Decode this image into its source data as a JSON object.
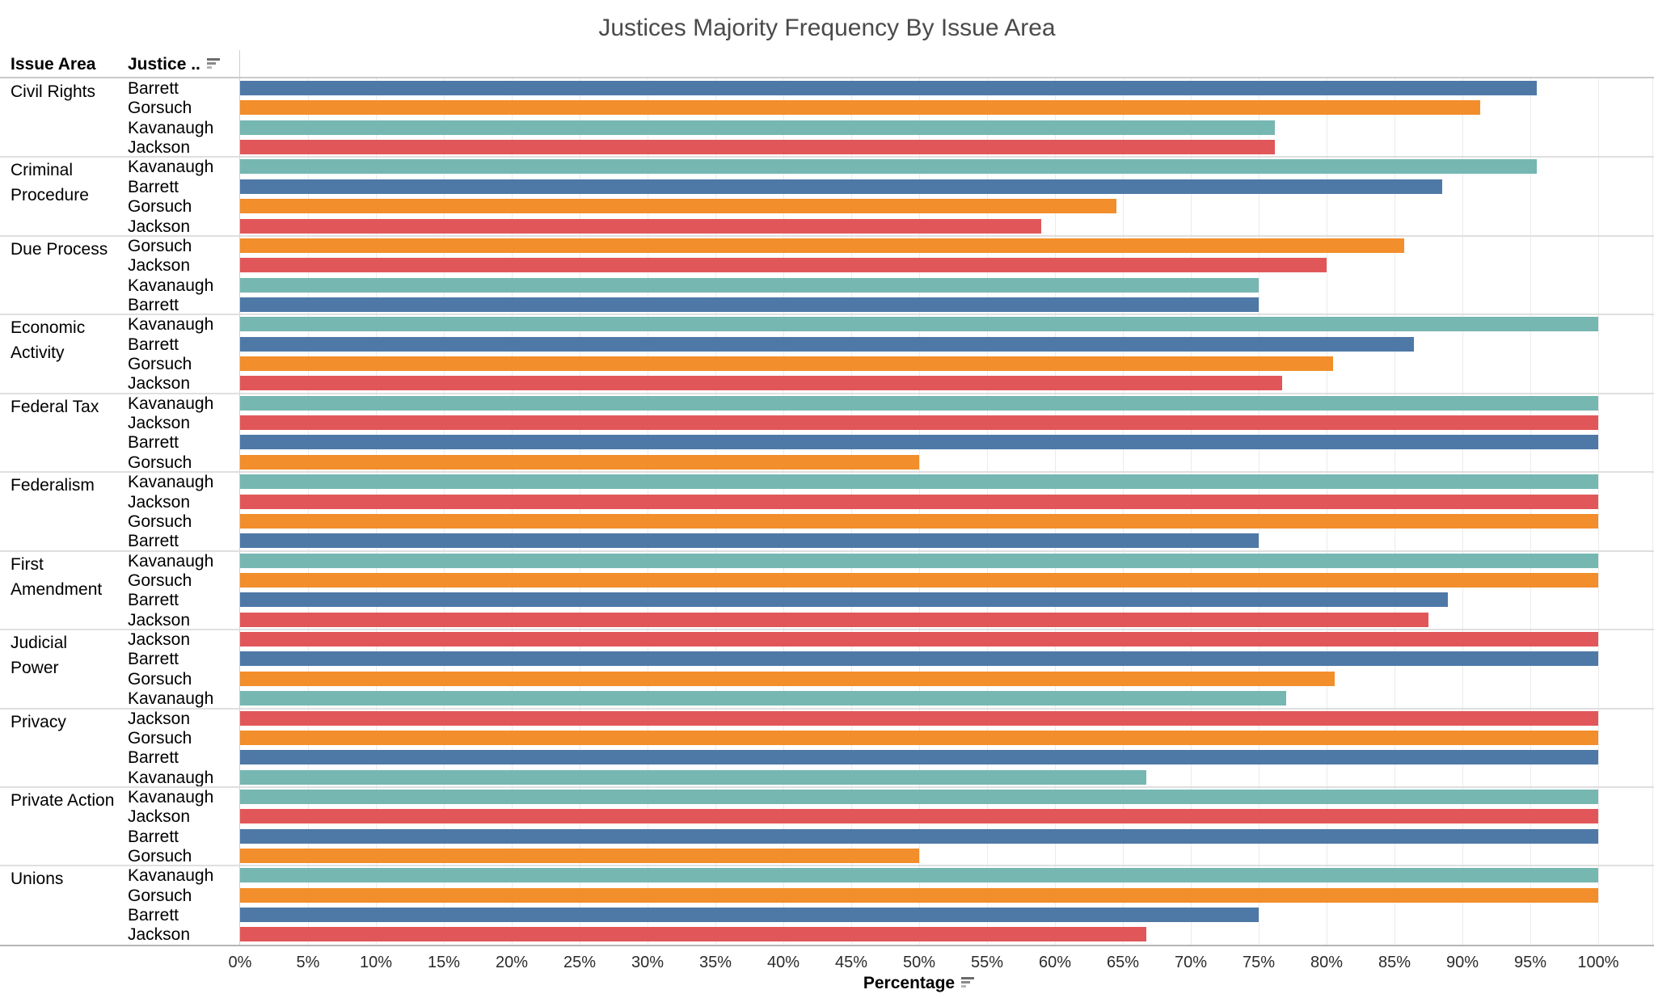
{
  "title": "Justices Majority Frequency By Issue Area",
  "columns": {
    "issue_area_header": "Issue Area",
    "justice_header": "Justice ..",
    "justice_sort_icon": "sort-descending-icon"
  },
  "x_axis": {
    "title": "Percentage",
    "sort_icon": "sort-descending-icon",
    "min": 0,
    "max": 100,
    "tick_step": 5,
    "ticks": [
      "0%",
      "5%",
      "10%",
      "15%",
      "20%",
      "25%",
      "30%",
      "35%",
      "40%",
      "45%",
      "50%",
      "55%",
      "60%",
      "65%",
      "70%",
      "75%",
      "80%",
      "85%",
      "90%",
      "95%",
      "100%"
    ]
  },
  "justice_colors": {
    "Barrett": "#4e79a7",
    "Gorsuch": "#f28e2b",
    "Kavanaugh": "#76b7b2",
    "Jackson": "#e15759"
  },
  "chart_data": {
    "type": "bar",
    "orientation": "horizontal",
    "title": "Justices Majority Frequency By Issue Area",
    "xlabel": "Percentage",
    "ylabel": "Issue Area / Justice",
    "xlim": [
      0,
      100
    ],
    "grid": true,
    "unit": "percent",
    "groups": [
      {
        "issue": "Civil Rights",
        "bars": [
          {
            "justice": "Barrett",
            "value": 95.5
          },
          {
            "justice": "Gorsuch",
            "value": 91.3
          },
          {
            "justice": "Kavanaugh",
            "value": 76.2
          },
          {
            "justice": "Jackson",
            "value": 76.2
          }
        ]
      },
      {
        "issue": "Criminal Procedure",
        "bars": [
          {
            "justice": "Kavanaugh",
            "value": 95.5
          },
          {
            "justice": "Barrett",
            "value": 88.5
          },
          {
            "justice": "Gorsuch",
            "value": 64.5
          },
          {
            "justice": "Jackson",
            "value": 59.0
          }
        ]
      },
      {
        "issue": "Due Process",
        "bars": [
          {
            "justice": "Gorsuch",
            "value": 85.7
          },
          {
            "justice": "Jackson",
            "value": 80.0
          },
          {
            "justice": "Kavanaugh",
            "value": 75.0
          },
          {
            "justice": "Barrett",
            "value": 75.0
          }
        ]
      },
      {
        "issue": "Economic Activity",
        "bars": [
          {
            "justice": "Kavanaugh",
            "value": 100
          },
          {
            "justice": "Barrett",
            "value": 86.4
          },
          {
            "justice": "Gorsuch",
            "value": 80.5
          },
          {
            "justice": "Jackson",
            "value": 76.7
          }
        ]
      },
      {
        "issue": "Federal Tax",
        "bars": [
          {
            "justice": "Kavanaugh",
            "value": 100
          },
          {
            "justice": "Jackson",
            "value": 100
          },
          {
            "justice": "Barrett",
            "value": 100
          },
          {
            "justice": "Gorsuch",
            "value": 50.0
          }
        ]
      },
      {
        "issue": "Federalism",
        "bars": [
          {
            "justice": "Kavanaugh",
            "value": 100
          },
          {
            "justice": "Jackson",
            "value": 100
          },
          {
            "justice": "Gorsuch",
            "value": 100
          },
          {
            "justice": "Barrett",
            "value": 75.0
          }
        ]
      },
      {
        "issue": "First Amendment",
        "bars": [
          {
            "justice": "Kavanaugh",
            "value": 100
          },
          {
            "justice": "Gorsuch",
            "value": 100
          },
          {
            "justice": "Barrett",
            "value": 88.9
          },
          {
            "justice": "Jackson",
            "value": 87.5
          }
        ]
      },
      {
        "issue": "Judicial Power",
        "bars": [
          {
            "justice": "Jackson",
            "value": 100
          },
          {
            "justice": "Barrett",
            "value": 100
          },
          {
            "justice": "Gorsuch",
            "value": 80.6
          },
          {
            "justice": "Kavanaugh",
            "value": 77.0
          }
        ]
      },
      {
        "issue": "Privacy",
        "bars": [
          {
            "justice": "Jackson",
            "value": 100
          },
          {
            "justice": "Gorsuch",
            "value": 100
          },
          {
            "justice": "Barrett",
            "value": 100
          },
          {
            "justice": "Kavanaugh",
            "value": 66.7
          }
        ]
      },
      {
        "issue": "Private Action",
        "bars": [
          {
            "justice": "Kavanaugh",
            "value": 100
          },
          {
            "justice": "Jackson",
            "value": 100
          },
          {
            "justice": "Barrett",
            "value": 100
          },
          {
            "justice": "Gorsuch",
            "value": 50.0
          }
        ]
      },
      {
        "issue": "Unions",
        "bars": [
          {
            "justice": "Kavanaugh",
            "value": 100
          },
          {
            "justice": "Gorsuch",
            "value": 100
          },
          {
            "justice": "Barrett",
            "value": 75.0
          },
          {
            "justice": "Jackson",
            "value": 66.7
          }
        ]
      }
    ]
  }
}
